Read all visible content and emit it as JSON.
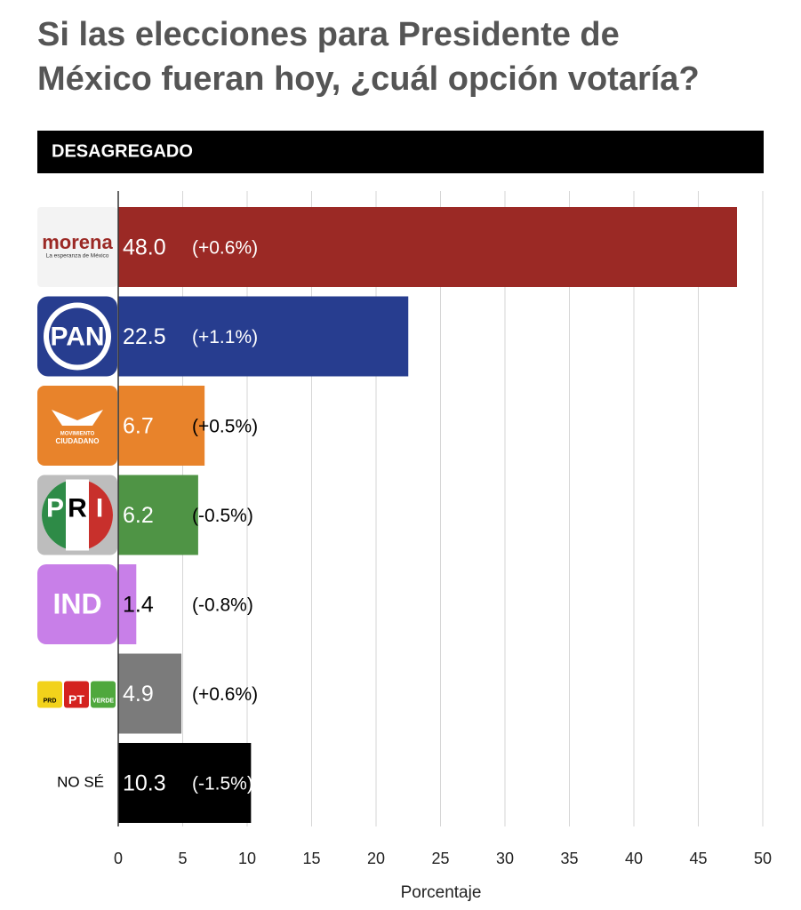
{
  "chart_data": {
    "type": "bar",
    "orientation": "horizontal",
    "title": "Si las elecciones para Presidente de México fueran hoy, ¿cuál opción votaría?",
    "section_label": "DESAGREGADO",
    "categories": [
      [
        "morena",
        "La esperanza de México"
      ],
      [
        "PAN"
      ],
      [
        "MOVIMIENTO",
        "CIUDADANO"
      ],
      [
        "P",
        "R",
        "I"
      ],
      [
        "IND"
      ],
      [
        "PRD",
        "PT",
        "VERDE"
      ],
      [
        "NO SÉ"
      ]
    ],
    "values": [
      48.0,
      22.5,
      6.7,
      6.2,
      1.4,
      4.9,
      10.3
    ],
    "value_labels": [
      "48.0",
      "22.5",
      "6.7",
      "6.2",
      "1.4",
      "4.9",
      "10.3"
    ],
    "change_labels": [
      "(+0.6%)",
      "(+1.1%)",
      "(+0.5%)",
      "(-0.5%)",
      "(-0.8%)",
      "(+0.6%)",
      "(-1.5%)"
    ],
    "colors": [
      "#9b2925",
      "#273d8f",
      "#e8832b",
      "#4f9445",
      "#c87fe8",
      "#7b7b7b",
      "#000000"
    ],
    "xlabel": "Porcentaje",
    "xlim": [
      0,
      50
    ],
    "xticks": [
      0,
      5,
      10,
      15,
      20,
      25,
      30,
      35,
      40,
      45,
      50
    ],
    "grid": true
  }
}
